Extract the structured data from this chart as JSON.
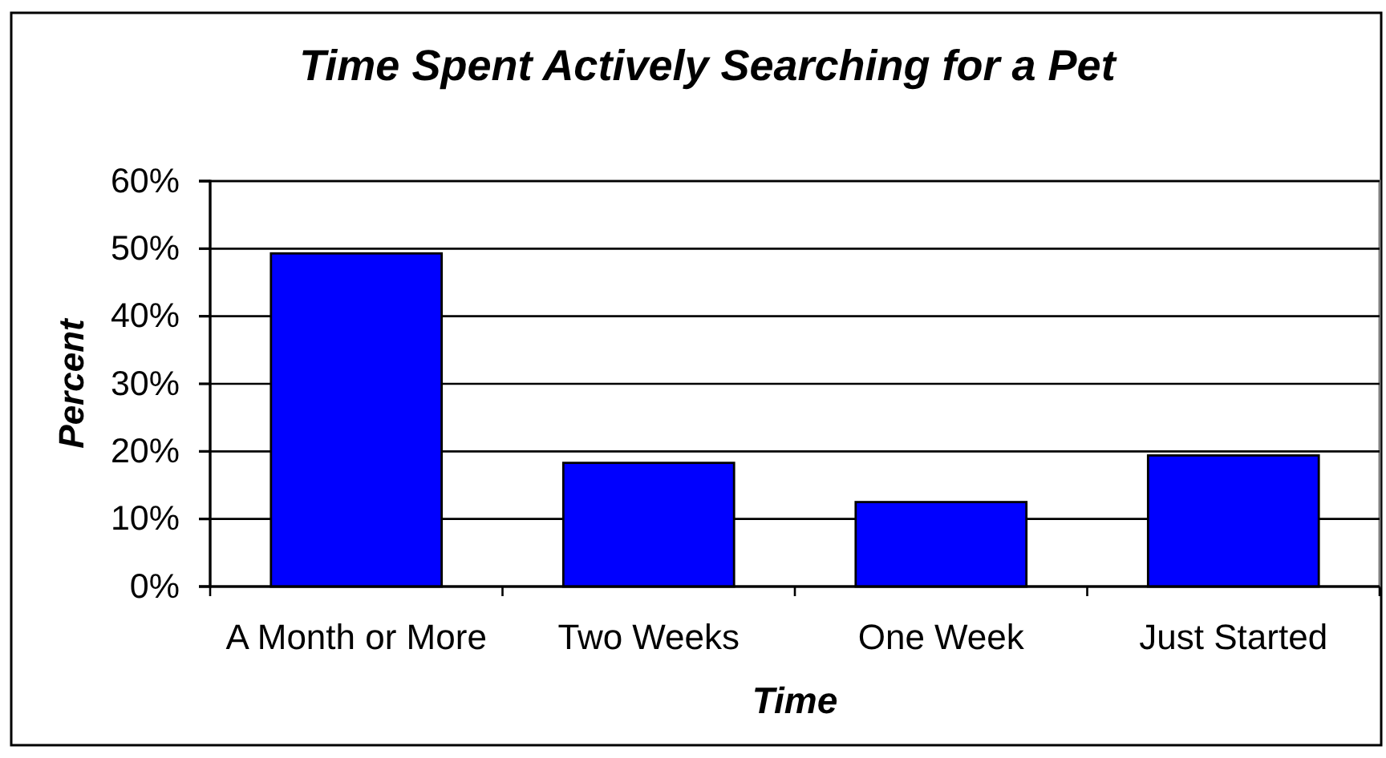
{
  "chart_data": {
    "type": "bar",
    "title": "Time Spent Actively Searching for a Pet",
    "xlabel": "Time",
    "ylabel": "Percent",
    "categories": [
      "A Month or More",
      "Two Weeks",
      "One Week",
      "Just Started"
    ],
    "values": [
      49.3,
      18.3,
      12.5,
      19.4
    ],
    "color": "#0000ff",
    "ylim": [
      0,
      60
    ],
    "yticks": [
      {
        "value": 0,
        "label": "0%"
      },
      {
        "value": 10,
        "label": "10%"
      },
      {
        "value": 20,
        "label": "20%"
      },
      {
        "value": 30,
        "label": "30%"
      },
      {
        "value": 40,
        "label": "40%"
      },
      {
        "value": 50,
        "label": "50%"
      },
      {
        "value": 60,
        "label": "60%"
      }
    ],
    "grid": "y"
  }
}
